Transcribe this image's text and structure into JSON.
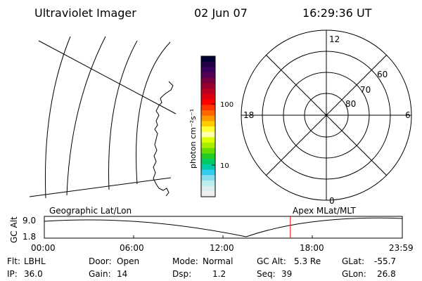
{
  "header": {
    "title": "Ultraviolet Imager",
    "date": "02 Jun 07",
    "time": "16:29:36 UT"
  },
  "colorbar": {
    "unit_label": "photon cm⁻²s⁻¹",
    "tick_labels": [
      "100",
      "10"
    ],
    "colors": [
      "#000033",
      "#220044",
      "#3a0060",
      "#550055",
      "#770040",
      "#990030",
      "#bb0020",
      "#dd0010",
      "#ff0000",
      "#ff3300",
      "#ff6600",
      "#ff9900",
      "#ffcc00",
      "#ffff33",
      "#ffffaa",
      "#ddff00",
      "#aaee00",
      "#66dd00",
      "#22cc22",
      "#00cc66",
      "#00ccaa",
      "#33ccee",
      "#88ddee",
      "#bbeeee",
      "#ddeeee",
      "#eeeeee"
    ]
  },
  "polar_plot": {
    "mlt_labels": {
      "top": "12",
      "left": "18",
      "right": "6",
      "bottom": "0"
    },
    "lat_labels": [
      "60",
      "70",
      "80"
    ]
  },
  "timeline": {
    "y_label": "GC Alt",
    "y_ticks": [
      "9.0",
      "1.8"
    ],
    "left_caption": "Geographic Lat/Lon",
    "right_caption": "Apex MLat/MLT",
    "x_ticks": [
      "00:00",
      "06:00",
      "12:00",
      "18:00",
      "23:59"
    ],
    "current_marker_color": "#ff0000",
    "current_time_fraction": 0.6873
  },
  "status": {
    "flt_label": "Flt:",
    "flt_value": "LBHL",
    "ip_label": "IP:",
    "ip_value": "36.0",
    "door_label": "Door:",
    "door_value": "Open",
    "gain_label": "Gain:",
    "gain_value": "14",
    "mode_label": "Mode:",
    "mode_value": "Normal",
    "dsp_label": "Dsp:",
    "dsp_value": "1.2",
    "gcalt_label": "GC Alt:",
    "gcalt_value": "5.3 Re",
    "seq_label": "Seq:",
    "seq_value": "39",
    "glat_label": "GLat:",
    "glat_value": "-55.7",
    "glon_label": "GLon:",
    "glon_value": "26.8"
  }
}
